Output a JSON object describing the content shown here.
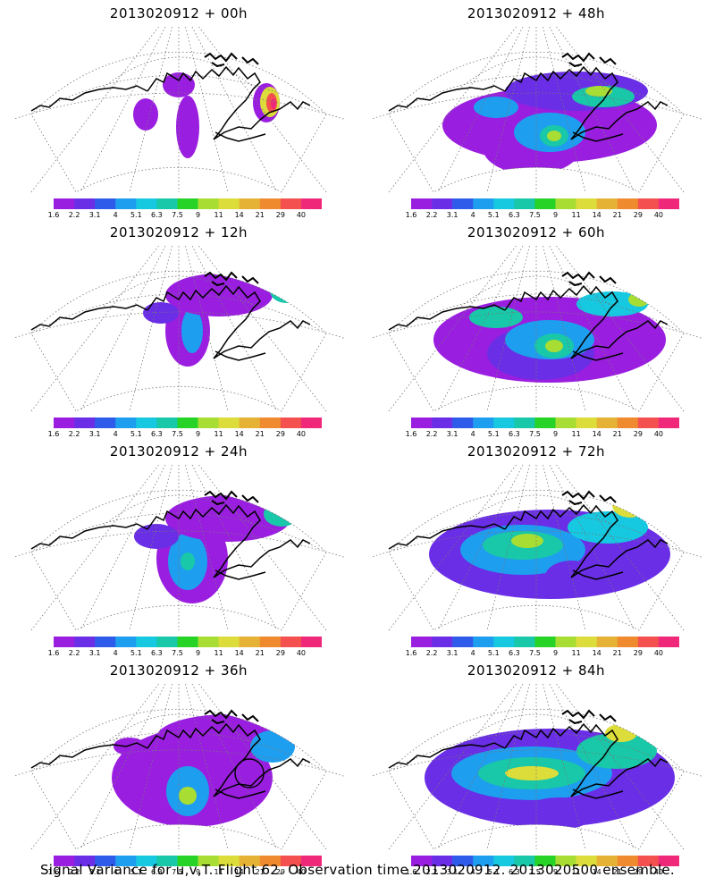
{
  "panels": [
    {
      "title": "2013020912 + 00h"
    },
    {
      "title": "2013020912 + 48h"
    },
    {
      "title": "2013020912 + 12h"
    },
    {
      "title": "2013020912 + 60h"
    },
    {
      "title": "2013020912 + 24h"
    },
    {
      "title": "2013020912 + 72h"
    },
    {
      "title": "2013020912 + 36h"
    },
    {
      "title": "2013020912 + 84h"
    }
  ],
  "colorbar": {
    "labels": [
      "1.6",
      "2.2",
      "3.1",
      "4",
      "5.1",
      "6.3",
      "7.5",
      "9",
      "11",
      "14",
      "21",
      "29",
      "40"
    ],
    "colors": [
      "#9a1ee0",
      "#6a2ee6",
      "#2f5bea",
      "#1e9eee",
      "#16c8e0",
      "#18c8a8",
      "#27d327",
      "#a8dd33",
      "#dcdc3a",
      "#e6b236",
      "#f08a2e",
      "#f45050",
      "#f0287a"
    ]
  },
  "caption": "Signal Variance for u,v,T. Flight 62. Observation time 2013020912. 2013020500 ensemble."
}
